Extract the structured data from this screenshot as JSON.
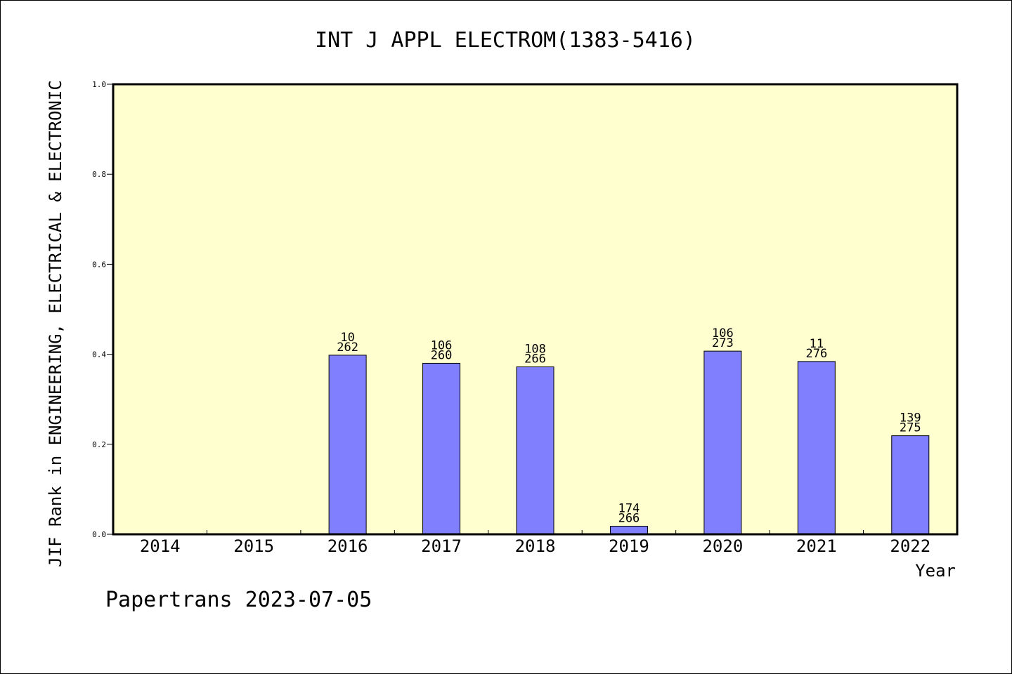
{
  "chart_data": {
    "type": "bar",
    "title": "INT J APPL ELECTROM(1383-5416)",
    "xlabel": "Year",
    "ylabel": "JIF Rank in ENGINEERING, ELECTRICAL & ELECTRONIC",
    "ylim": [
      0,
      1.0
    ],
    "yticks": [
      "0.0",
      "0.2",
      "0.4",
      "0.6",
      "0.8",
      "1.0"
    ],
    "grid": false,
    "legend": "none",
    "categories": [
      "2014",
      "2015",
      "2016",
      "2017",
      "2018",
      "2019",
      "2020",
      "2021",
      "2022"
    ],
    "values": [
      null,
      null,
      0.398,
      0.38,
      0.372,
      0.018,
      0.407,
      0.384,
      0.219
    ],
    "labels_top": [
      "",
      "",
      "10",
      "106",
      "108",
      "174",
      "106",
      "11",
      "139"
    ],
    "labels_bottom": [
      "",
      "",
      "262",
      "260",
      "266",
      "266",
      "273",
      "276",
      "275"
    ],
    "colors": {
      "plot_background": "#ffffd0",
      "bar_fill": "#8080ff",
      "bar_stroke": "#000000",
      "axis": "#000000"
    }
  },
  "footer": {
    "text": "Papertrans 2023-07-05"
  }
}
